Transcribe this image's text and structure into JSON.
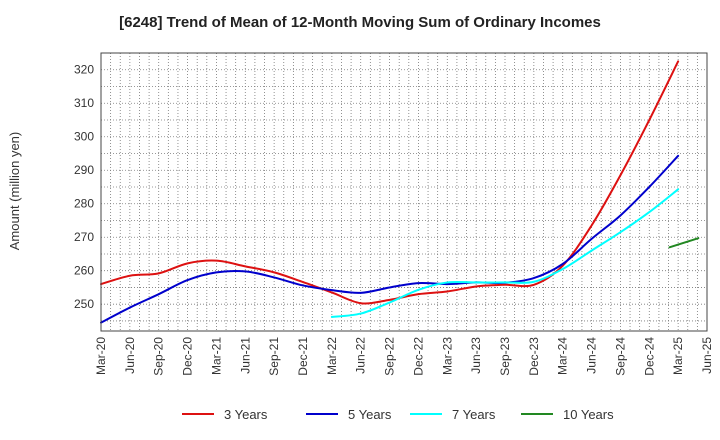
{
  "chart_data": {
    "type": "line",
    "title": "[6248]  Trend of Mean of 12-Month Moving Sum of Ordinary Incomes",
    "xlabel": "",
    "ylabel": "Amount (million yen)",
    "ylim": [
      242,
      325
    ],
    "yticks": [
      250,
      260,
      270,
      280,
      290,
      300,
      310,
      320
    ],
    "x_categories": [
      "Mar-20",
      "Jun-20",
      "Sep-20",
      "Dec-20",
      "Mar-21",
      "Jun-21",
      "Sep-21",
      "Dec-21",
      "Mar-22",
      "Jun-22",
      "Sep-22",
      "Dec-22",
      "Mar-23",
      "Jun-23",
      "Sep-23",
      "Dec-23",
      "Mar-24",
      "Jun-24",
      "Sep-24",
      "Dec-24",
      "Mar-25",
      "Jun-25"
    ],
    "grid": true,
    "legend_position": "bottom",
    "series": [
      {
        "name": "3 Years",
        "color": "#dd1111",
        "start_index": 0,
        "values": [
          256,
          258.5,
          259.2,
          262.2,
          263,
          261.3,
          259.5,
          256.6,
          253.5,
          250.3,
          251.3,
          253,
          253.8,
          255.3,
          255.8,
          255.8,
          261.5,
          273.5,
          288.5,
          305,
          322.5
        ]
      },
      {
        "name": "5 Years",
        "color": "#0000cc",
        "start_index": 0,
        "values": [
          244.5,
          249,
          253,
          257.2,
          259.5,
          259.8,
          258,
          255.6,
          254.2,
          253.4,
          255,
          256.3,
          256,
          256.5,
          256.4,
          257.8,
          262,
          269.5,
          276.5,
          285,
          294.3
        ]
      },
      {
        "name": "7 Years",
        "color": "#00ffff",
        "start_index": 8,
        "values": [
          246.2,
          247.2,
          250.5,
          254.3,
          256.5,
          256.5,
          256.5,
          256.7,
          260.5,
          266,
          271.5,
          277.5,
          284.3
        ]
      },
      {
        "name": "10 Years",
        "color": "#228822",
        "start_index": 19.7,
        "values": [
          267,
          269.7
        ]
      }
    ]
  }
}
